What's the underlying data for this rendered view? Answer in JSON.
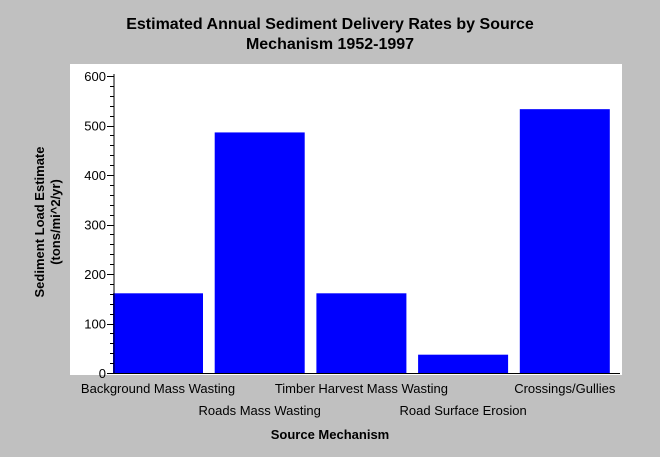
{
  "chart_data": {
    "type": "bar",
    "title_lines": [
      "Estimated Annual Sediment Delivery Rates by Source",
      "Mechanism 1952-1997"
    ],
    "xlabel": "Source Mechanism",
    "ylabel_lines": [
      "Sediment Load Estimate",
      "(tons/mi^2/yr)"
    ],
    "categories": [
      "Background Mass Wasting",
      "Roads Mass Wasting",
      "Timber Harvest Mass Wasting",
      "Road Surface Erosion",
      "Crossings/Gullies"
    ],
    "values": [
      161,
      486,
      161,
      37,
      533
    ],
    "ylim": [
      0,
      600
    ],
    "yticks": [
      "0",
      "100",
      "200",
      "300",
      "400",
      "500",
      "600"
    ],
    "bar_color": "#0000ff",
    "plot_background": "#ffffff",
    "background": "#c0c0c0",
    "grid": false
  }
}
